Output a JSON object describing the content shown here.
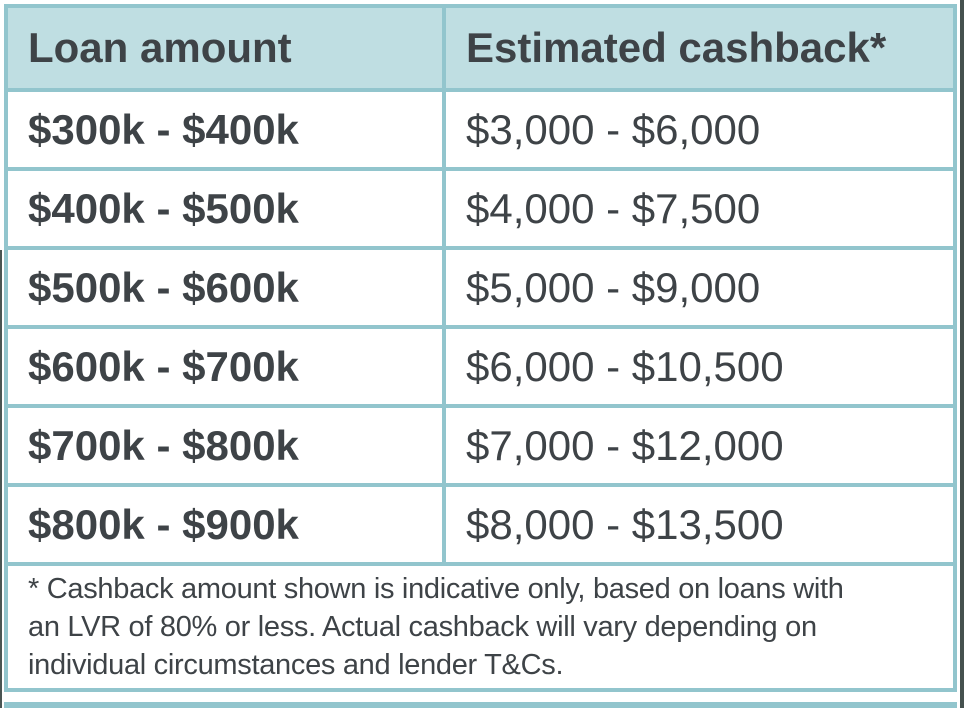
{
  "colors": {
    "border_teal": "#92c5cd",
    "header_bg": "#bfdee2",
    "text_charcoal": "#3e4347",
    "page_bg": "#ffffff",
    "screen_edge_dark": "#45514f"
  },
  "table": {
    "columns": [
      {
        "label": "Loan amount"
      },
      {
        "label": "Estimated cashback*"
      }
    ],
    "rows": [
      {
        "loan_amount": "$300k - $400k",
        "estimated_cashback": "$3,000 - $6,000"
      },
      {
        "loan_amount": "$400k - $500k",
        "estimated_cashback": "$4,000 - $7,500"
      },
      {
        "loan_amount": "$500k - $600k",
        "estimated_cashback": "$5,000 - $9,000"
      },
      {
        "loan_amount": "$600k - $700k",
        "estimated_cashback": "$6,000 - $10,500"
      },
      {
        "loan_amount": "$700k - $800k",
        "estimated_cashback": "$7,000 - $12,000"
      },
      {
        "loan_amount": "$800k - $900k",
        "estimated_cashback": "$8,000 - $13,500"
      }
    ],
    "footnote_lines": [
      "* Cashback amount shown is indicative only, based on loans with",
      "an LVR of 80% or less. Actual cashback will vary depending on",
      "individual circumstances and lender T&Cs."
    ]
  }
}
